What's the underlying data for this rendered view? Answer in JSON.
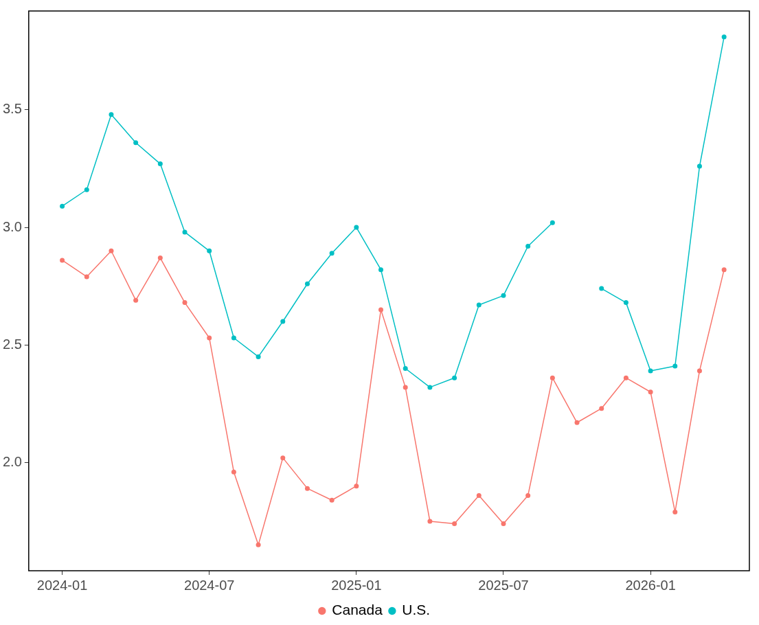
{
  "chart_data": {
    "type": "line",
    "x": [
      "2024-01",
      "2024-02",
      "2024-03",
      "2024-04",
      "2024-05",
      "2024-06",
      "2024-07",
      "2024-08",
      "2024-09",
      "2024-10",
      "2024-11",
      "2024-12",
      "2025-01",
      "2025-02",
      "2025-03",
      "2025-04",
      "2025-05",
      "2025-06",
      "2025-07",
      "2025-08",
      "2025-09",
      "2025-10",
      "2025-11",
      "2025-12",
      "2026-01",
      "2026-02",
      "2026-03",
      "2026-04"
    ],
    "series": [
      {
        "name": "Canada",
        "color": "#f8766d",
        "values": [
          2.86,
          2.79,
          2.9,
          2.69,
          2.87,
          2.68,
          2.53,
          1.96,
          1.65,
          2.02,
          1.89,
          1.84,
          1.9,
          2.65,
          2.32,
          1.75,
          1.74,
          1.86,
          1.74,
          1.86,
          2.36,
          2.17,
          2.23,
          2.36,
          2.3,
          1.79,
          2.39,
          2.82
        ]
      },
      {
        "name": "U.S.",
        "color": "#00bfc4",
        "values": [
          3.09,
          3.16,
          3.48,
          3.36,
          3.27,
          2.98,
          2.9,
          2.53,
          2.45,
          2.6,
          2.76,
          2.89,
          3.0,
          2.82,
          2.4,
          2.32,
          2.36,
          2.67,
          2.71,
          2.92,
          3.02,
          null,
          2.74,
          2.68,
          2.39,
          2.41,
          3.26,
          3.81
        ]
      }
    ],
    "xlim": [
      "2023-11-20",
      "2026-05-02"
    ],
    "xticks": [
      "2024-01",
      "2024-07",
      "2025-01",
      "2025-07",
      "2026-01"
    ],
    "ylim": [
      1.54,
      3.92
    ],
    "yticks": [
      {
        "value": 2,
        "label": "2.0"
      },
      2.5,
      {
        "value": 3,
        "label": "3.0"
      },
      3.5
    ],
    "grid": false,
    "legend": "bottom",
    "marker": "circle",
    "line_style": "solid"
  }
}
